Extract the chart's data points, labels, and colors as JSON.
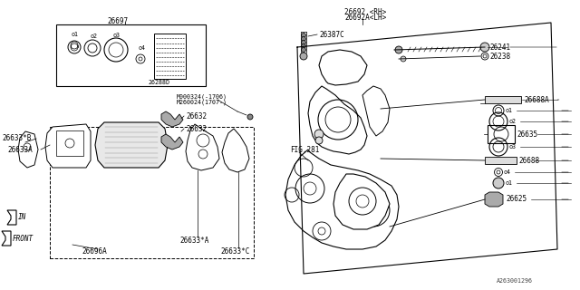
{
  "bg_color": "#ffffff",
  "lc": "#000000",
  "diagram_id": "A263001296",
  "title_26697": "26697",
  "fig_ref": "FIG.281",
  "label_26692rh": "26692 <RH>",
  "label_26692alh": "26692A<LH>",
  "label_26387c": "26387C",
  "label_26241": "26241",
  "label_26238": "26238",
  "label_26688a": "26688A",
  "label_26635": "26635",
  "label_26688": "26688",
  "label_26625": "26625",
  "label_26632a": "26632",
  "label_26632b": "26632",
  "label_26633b": "26633*B",
  "label_26633a": "26633A",
  "label_26696a": "26696A",
  "label_26633sa": "26633*A",
  "label_26633sc": "26633*C",
  "label_26288d": "26288D",
  "label_m1": "M000324(-1706)",
  "label_m2": "M260024(1707-)"
}
